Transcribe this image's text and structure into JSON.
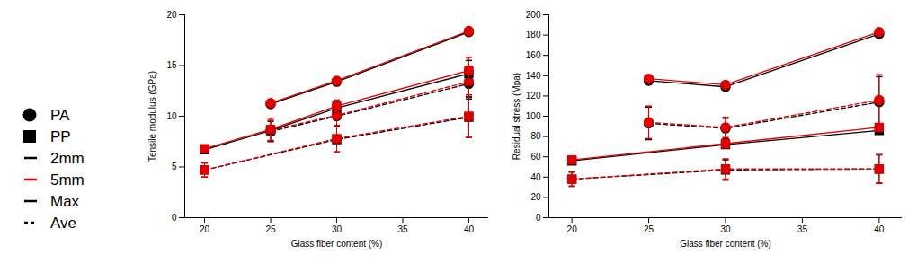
{
  "legend_items": [
    {
      "label": "PA",
      "marker": "circle"
    },
    {
      "label": "PP",
      "marker": "square"
    },
    {
      "label": "2mm",
      "color": "#000000"
    },
    {
      "label": "5mm",
      "color": "#e00000"
    },
    {
      "label": "Max",
      "line_style": "solid"
    },
    {
      "label": "Ave",
      "line_style": "dashed"
    }
  ],
  "chart_data": [
    {
      "type": "line",
      "x_label": "Glass fiber content (%)",
      "y_label": "Tensile modulus (GPa)",
      "xlim": [
        18.5,
        41.5
      ],
      "xticks": [
        20,
        25,
        30,
        35,
        40
      ],
      "ylim": [
        0,
        20
      ],
      "yticks": [
        0,
        5,
        10,
        15,
        20
      ],
      "series": [
        {
          "material": "PA",
          "thickness": "2mm",
          "stat": "Max",
          "color": "#000000",
          "marker": "circle",
          "line_style": "solid",
          "x": [
            25,
            30,
            40
          ],
          "values": [
            11.2,
            13.4,
            18.3
          ],
          "error": [
            null,
            null,
            null
          ]
        },
        {
          "material": "PA",
          "thickness": "5mm",
          "stat": "Max",
          "color": "#e00000",
          "marker": "circle",
          "line_style": "solid",
          "x": [
            25,
            30,
            40
          ],
          "values": [
            11.3,
            13.5,
            18.4
          ],
          "error": [
            null,
            null,
            null
          ]
        },
        {
          "material": "PA",
          "thickness": "2mm",
          "stat": "Ave",
          "color": "#000000",
          "marker": "circle",
          "line_style": "dashed",
          "x": [
            25,
            30,
            40
          ],
          "values": [
            8.5,
            10.0,
            13.2
          ],
          "error": [
            1.0,
            1.0,
            1.5
          ]
        },
        {
          "material": "PA",
          "thickness": "5mm",
          "stat": "Ave",
          "color": "#e00000",
          "marker": "circle",
          "line_style": "dashed",
          "x": [
            25,
            30,
            40
          ],
          "values": [
            8.6,
            10.1,
            13.4
          ],
          "error": [
            1.0,
            1.1,
            1.5
          ]
        },
        {
          "material": "PP",
          "thickness": "2mm",
          "stat": "Max",
          "color": "#000000",
          "marker": "square",
          "line_style": "solid",
          "x": [
            20,
            25,
            30,
            40
          ],
          "values": [
            6.7,
            8.6,
            10.8,
            14.2
          ],
          "error": [
            null,
            null,
            null,
            1.3
          ]
        },
        {
          "material": "PP",
          "thickness": "5mm",
          "stat": "Max",
          "color": "#e00000",
          "marker": "square",
          "line_style": "solid",
          "x": [
            20,
            25,
            30,
            40
          ],
          "values": [
            6.8,
            8.7,
            11.0,
            14.5
          ],
          "error": [
            null,
            1.1,
            0.6,
            1.3
          ]
        },
        {
          "material": "PP",
          "thickness": "2mm",
          "stat": "Ave",
          "color": "#000000",
          "marker": "square",
          "line_style": "dashed",
          "x": [
            20,
            30,
            40
          ],
          "values": [
            4.7,
            7.7,
            9.9
          ],
          "error": [
            0.7,
            1.3,
            2.0
          ]
        },
        {
          "material": "PP",
          "thickness": "5mm",
          "stat": "Ave",
          "color": "#e00000",
          "marker": "square",
          "line_style": "dashed",
          "x": [
            20,
            30,
            40
          ],
          "values": [
            4.7,
            7.8,
            10.0
          ],
          "error": [
            0.7,
            1.3,
            2.1
          ]
        }
      ]
    },
    {
      "type": "line",
      "x_label": "Glass fiber content (%)",
      "y_label": "Residual stress (Mpa)",
      "xlim": [
        18.5,
        41.5
      ],
      "xticks": [
        20,
        25,
        30,
        35,
        40
      ],
      "ylim": [
        0,
        200
      ],
      "yticks": [
        0,
        20,
        40,
        60,
        80,
        100,
        120,
        140,
        160,
        180,
        200
      ],
      "series": [
        {
          "material": "PA",
          "thickness": "2mm",
          "stat": "Max",
          "color": "#000000",
          "marker": "circle",
          "line_style": "solid",
          "x": [
            25,
            30,
            40
          ],
          "values": [
            135,
            129,
            181
          ],
          "error": [
            null,
            null,
            null
          ]
        },
        {
          "material": "PA",
          "thickness": "5mm",
          "stat": "Max",
          "color": "#e00000",
          "marker": "circle",
          "line_style": "solid",
          "x": [
            25,
            30,
            40
          ],
          "values": [
            137,
            131,
            183
          ],
          "error": [
            null,
            null,
            null
          ]
        },
        {
          "material": "PA",
          "thickness": "2mm",
          "stat": "Ave",
          "color": "#000000",
          "marker": "circle",
          "line_style": "dashed",
          "x": [
            25,
            30,
            40
          ],
          "values": [
            93,
            88,
            114
          ],
          "error": [
            16,
            10,
            25
          ]
        },
        {
          "material": "PA",
          "thickness": "5mm",
          "stat": "Ave",
          "color": "#e00000",
          "marker": "circle",
          "line_style": "dashed",
          "x": [
            25,
            30,
            40
          ],
          "values": [
            94,
            89,
            116
          ],
          "error": [
            16,
            10,
            25
          ]
        },
        {
          "material": "PP",
          "thickness": "2mm",
          "stat": "Max",
          "color": "#000000",
          "marker": "square",
          "line_style": "solid",
          "x": [
            20,
            30,
            40
          ],
          "values": [
            56,
            72,
            86
          ],
          "error": [
            null,
            null,
            null
          ]
        },
        {
          "material": "PP",
          "thickness": "5mm",
          "stat": "Max",
          "color": "#e00000",
          "marker": "square",
          "line_style": "solid",
          "x": [
            20,
            30,
            40
          ],
          "values": [
            57,
            73,
            89
          ],
          "error": [
            null,
            null,
            null
          ]
        },
        {
          "material": "PP",
          "thickness": "2mm",
          "stat": "Ave",
          "color": "#000000",
          "marker": "square",
          "line_style": "dashed",
          "x": [
            20,
            30,
            40
          ],
          "values": [
            38,
            47,
            48
          ],
          "error": [
            7,
            10,
            14
          ]
        },
        {
          "material": "PP",
          "thickness": "5mm",
          "stat": "Ave",
          "color": "#e00000",
          "marker": "square",
          "line_style": "dashed",
          "x": [
            20,
            30,
            40
          ],
          "values": [
            38,
            48,
            48
          ],
          "error": [
            7,
            10,
            14
          ]
        }
      ]
    }
  ]
}
